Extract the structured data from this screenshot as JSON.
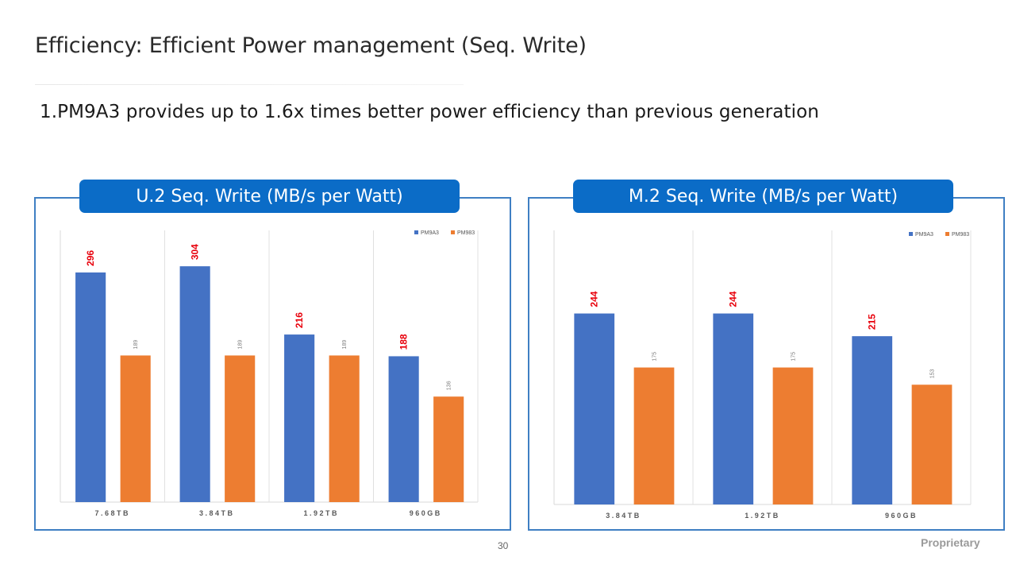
{
  "slide": {
    "title": "Efficiency: Efficient Power management (Seq. Write)",
    "subtitle": "1.PM9A3 provides up to 1.6x times better power efficiency than previous generation",
    "page_number": "30",
    "footer_label": "Proprietary"
  },
  "colors": {
    "series_primary": "#4472c4",
    "series_secondary": "#ed7d31",
    "highlight_label": "#e8000b",
    "header_bg": "#0b6cc7",
    "panel_border": "#3f7fc3"
  },
  "chart_data": [
    {
      "type": "bar",
      "header": "U.2 Seq. Write (MB/s per Watt)",
      "categories": [
        "7.68TB",
        "3.84TB",
        "1.92TB",
        "960GB"
      ],
      "series": [
        {
          "name": "PM9A3",
          "values": [
            296,
            304,
            216,
            188
          ]
        },
        {
          "name": "PM983",
          "values": [
            189,
            189,
            189,
            136
          ]
        }
      ],
      "ylim": [
        0,
        340
      ],
      "legend": "top-right",
      "grid": "vertical category separators"
    },
    {
      "type": "bar",
      "header": "M.2 Seq. Write (MB/s per Watt)",
      "categories": [
        "3.84TB",
        "1.92TB",
        "960GB"
      ],
      "series": [
        {
          "name": "PM9A3",
          "values": [
            244,
            244,
            215
          ]
        },
        {
          "name": "PM983",
          "values": [
            175,
            175,
            153
          ]
        }
      ],
      "ylim": [
        0,
        340
      ],
      "legend": "top-right",
      "grid": "vertical category separators"
    }
  ]
}
